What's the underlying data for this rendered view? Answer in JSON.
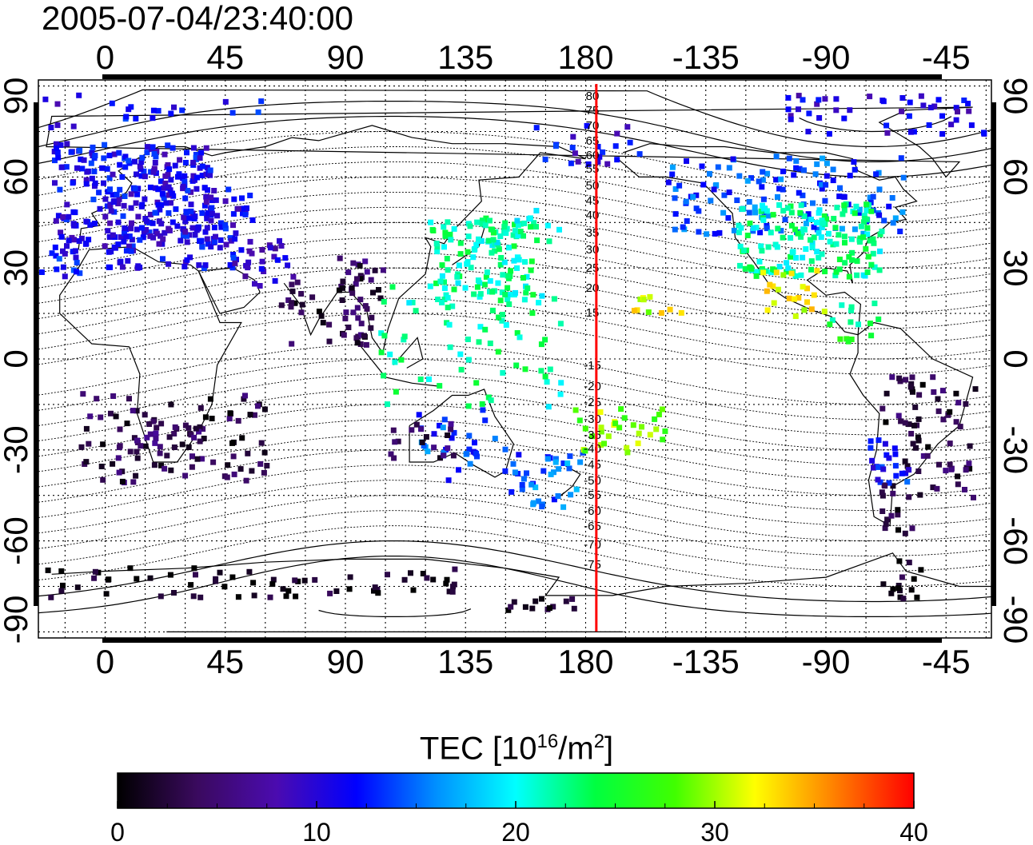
{
  "title": "2005-07-04/23:40:00",
  "map": {
    "x_ticks_top": [
      "0",
      "45",
      "90",
      "135",
      "180",
      "-135",
      "-90",
      "-45"
    ],
    "x_ticks_bottom": [
      "0",
      "45",
      "90",
      "135",
      "180",
      "-135",
      "-90",
      "-45"
    ],
    "y_ticks_left": [
      "90",
      "60",
      "30",
      "0",
      "-30",
      "-60",
      "-90"
    ],
    "y_ticks_right": [
      "90",
      "60",
      "30",
      "0",
      "-30",
      "-60",
      "-90"
    ],
    "x_range_lon": [
      -25,
      332
    ],
    "y_range_lat": [
      -92,
      92
    ],
    "grid": "dotted, every 15 degrees",
    "contour_labels": [
      "80",
      "75",
      "70",
      "65",
      "60",
      "55",
      "50",
      "45",
      "40",
      "35",
      "30",
      "25",
      "20",
      "15",
      "-15",
      "-20",
      "-25",
      "-30",
      "-35",
      "-40",
      "-45",
      "-50",
      "-55",
      "-60",
      "-65",
      "-70",
      "-75"
    ],
    "terminator_line_lon": 184,
    "terminator_color": "#ff0000"
  },
  "colorbar": {
    "title_prefix": "TEC  [10",
    "title_exp1": "16",
    "title_mid": "/m",
    "title_exp2": "2",
    "title_suffix": "]",
    "tick_labels": [
      "0",
      "10",
      "20",
      "30",
      "40"
    ],
    "range": [
      0,
      40
    ],
    "colors": [
      "#000000",
      "#3a0a5e",
      "#4b0bb0",
      "#0000ff",
      "#0090ff",
      "#00ffff",
      "#00ff40",
      "#40ff00",
      "#ffff00",
      "#ff8000",
      "#ff0000"
    ]
  }
}
